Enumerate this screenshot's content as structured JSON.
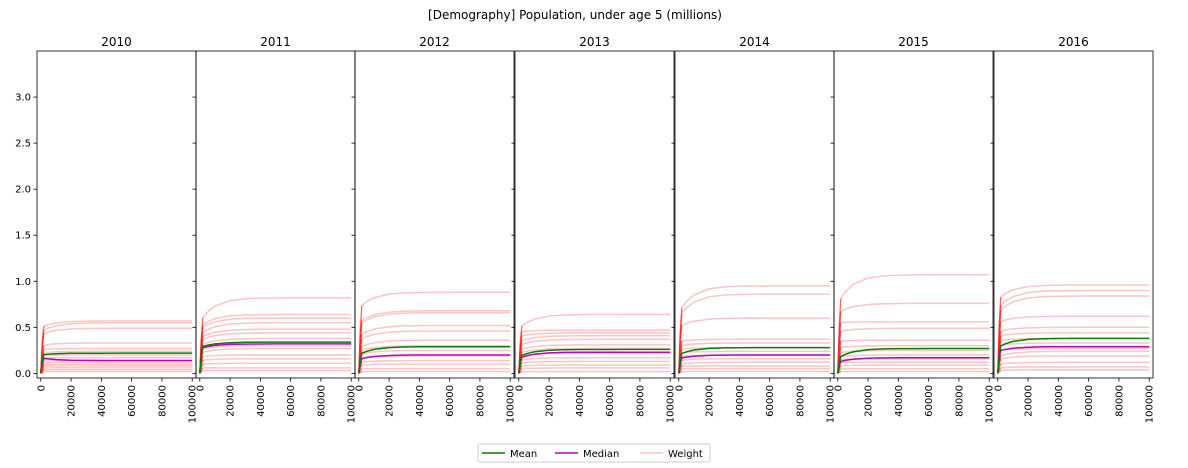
{
  "chart_data": {
    "type": "line",
    "title": "[Demography] Population, under age 5 (millions)",
    "xlabel": "",
    "ylabel": "",
    "xlim": [
      -2500,
      102500
    ],
    "ylim": [
      -0.05,
      3.5
    ],
    "x_ticks": [
      0,
      20000,
      40000,
      60000,
      80000,
      100000
    ],
    "x_tick_labels": [
      "0",
      "20000",
      "40000",
      "60000",
      "80000",
      "100000"
    ],
    "y_ticks": [
      0.0,
      0.5,
      1.0,
      1.5,
      2.0,
      2.5,
      3.0
    ],
    "y_tick_labels": [
      "0.0",
      "0.5",
      "1.0",
      "1.5",
      "2.0",
      "2.5",
      "3.0"
    ],
    "grid": false,
    "legend": {
      "placement": "bottom-center",
      "entries": [
        {
          "name": "Mean",
          "color": "#008000"
        },
        {
          "name": "Median",
          "color": "#bf00bf"
        },
        {
          "name": "Weight",
          "color": "#ffc0c0"
        }
      ]
    },
    "x": [
      0,
      1000,
      2000,
      5000,
      10000,
      20000,
      30000,
      40000,
      50000,
      60000,
      70000,
      80000,
      90000,
      100000
    ],
    "colors": {
      "mean": "#008000",
      "median": "#bf00bf",
      "weight": "#ffb0b0",
      "weight_early": "#ff2020"
    },
    "panels": [
      {
        "title": "2010",
        "mean_start": 0.2,
        "mean_final": 0.22,
        "median_start": 0.17,
        "median_final": 0.14,
        "weights": [
          {
            "start": 0.5,
            "final": 0.57
          },
          {
            "start": 0.45,
            "final": 0.55
          },
          {
            "start": 0.42,
            "final": 0.49
          },
          {
            "start": 0.3,
            "final": 0.33
          },
          {
            "start": 0.26,
            "final": 0.27
          },
          {
            "start": 0.22,
            "final": 0.24
          },
          {
            "start": 0.2,
            "final": 0.2
          },
          {
            "start": 0.17,
            "final": 0.17
          },
          {
            "start": 0.15,
            "final": 0.14
          },
          {
            "start": 0.12,
            "final": 0.12
          },
          {
            "start": 0.1,
            "final": 0.1
          },
          {
            "start": 0.08,
            "final": 0.08
          },
          {
            "start": 0.06,
            "final": 0.06
          },
          {
            "start": 0.04,
            "final": 0.04
          },
          {
            "start": 0.02,
            "final": 0.02
          }
        ]
      },
      {
        "title": "2011",
        "mean_start": 0.28,
        "mean_final": 0.34,
        "median_start": 0.27,
        "median_final": 0.32,
        "weights": [
          {
            "start": 0.55,
            "final": 0.82
          },
          {
            "start": 0.5,
            "final": 0.64
          },
          {
            "start": 0.48,
            "final": 0.6
          },
          {
            "start": 0.42,
            "final": 0.55
          },
          {
            "start": 0.38,
            "final": 0.48
          },
          {
            "start": 0.35,
            "final": 0.44
          },
          {
            "start": 0.3,
            "final": 0.38
          },
          {
            "start": 0.26,
            "final": 0.3
          },
          {
            "start": 0.22,
            "final": 0.27
          },
          {
            "start": 0.18,
            "final": 0.2
          },
          {
            "start": 0.14,
            "final": 0.16
          },
          {
            "start": 0.1,
            "final": 0.11
          },
          {
            "start": 0.06,
            "final": 0.06
          },
          {
            "start": 0.03,
            "final": 0.03
          }
        ]
      },
      {
        "title": "2012",
        "mean_start": 0.2,
        "mean_final": 0.29,
        "median_start": 0.15,
        "median_final": 0.2,
        "weights": [
          {
            "start": 0.7,
            "final": 0.88
          },
          {
            "start": 0.55,
            "final": 0.68
          },
          {
            "start": 0.52,
            "final": 0.66
          },
          {
            "start": 0.4,
            "final": 0.52
          },
          {
            "start": 0.35,
            "final": 0.46
          },
          {
            "start": 0.28,
            "final": 0.36
          },
          {
            "start": 0.24,
            "final": 0.3
          },
          {
            "start": 0.2,
            "final": 0.25
          },
          {
            "start": 0.16,
            "final": 0.19
          },
          {
            "start": 0.12,
            "final": 0.14
          },
          {
            "start": 0.09,
            "final": 0.1
          },
          {
            "start": 0.05,
            "final": 0.05
          },
          {
            "start": 0.02,
            "final": 0.02
          }
        ]
      },
      {
        "title": "2013",
        "mean_start": 0.18,
        "mean_final": 0.26,
        "median_start": 0.16,
        "median_final": 0.23,
        "weights": [
          {
            "start": 0.48,
            "final": 0.64
          },
          {
            "start": 0.45,
            "final": 0.47
          },
          {
            "start": 0.4,
            "final": 0.44
          },
          {
            "start": 0.34,
            "final": 0.41
          },
          {
            "start": 0.3,
            "final": 0.37
          },
          {
            "start": 0.25,
            "final": 0.31
          },
          {
            "start": 0.22,
            "final": 0.27
          },
          {
            "start": 0.18,
            "final": 0.22
          },
          {
            "start": 0.14,
            "final": 0.17
          },
          {
            "start": 0.11,
            "final": 0.13
          },
          {
            "start": 0.08,
            "final": 0.09
          },
          {
            "start": 0.05,
            "final": 0.06
          },
          {
            "start": 0.02,
            "final": 0.02
          }
        ]
      },
      {
        "title": "2014",
        "mean_start": 0.2,
        "mean_final": 0.28,
        "median_start": 0.16,
        "median_final": 0.2,
        "weights": [
          {
            "start": 0.65,
            "final": 0.95
          },
          {
            "start": 0.6,
            "final": 0.86
          },
          {
            "start": 0.5,
            "final": 0.6
          },
          {
            "start": 0.35,
            "final": 0.37
          },
          {
            "start": 0.3,
            "final": 0.33
          },
          {
            "start": 0.26,
            "final": 0.28
          },
          {
            "start": 0.22,
            "final": 0.24
          },
          {
            "start": 0.18,
            "final": 0.2
          },
          {
            "start": 0.14,
            "final": 0.16
          },
          {
            "start": 0.1,
            "final": 0.12
          },
          {
            "start": 0.08,
            "final": 0.08
          },
          {
            "start": 0.05,
            "final": 0.05
          },
          {
            "start": 0.02,
            "final": 0.02
          }
        ]
      },
      {
        "title": "2015",
        "mean_start": 0.16,
        "mean_final": 0.27,
        "median_start": 0.12,
        "median_final": 0.17,
        "weights": [
          {
            "start": 0.75,
            "final": 1.07
          },
          {
            "start": 0.65,
            "final": 0.76
          },
          {
            "start": 0.55,
            "final": 0.56
          },
          {
            "start": 0.45,
            "final": 0.49
          },
          {
            "start": 0.35,
            "final": 0.36
          },
          {
            "start": 0.28,
            "final": 0.3
          },
          {
            "start": 0.22,
            "final": 0.25
          },
          {
            "start": 0.18,
            "final": 0.2
          },
          {
            "start": 0.15,
            "final": 0.16
          },
          {
            "start": 0.12,
            "final": 0.12
          },
          {
            "start": 0.08,
            "final": 0.09
          },
          {
            "start": 0.05,
            "final": 0.05
          },
          {
            "start": 0.02,
            "final": 0.02
          }
        ]
      },
      {
        "title": "2016",
        "mean_start": 0.28,
        "mean_final": 0.38,
        "median_start": 0.24,
        "median_final": 0.29,
        "weights": [
          {
            "start": 0.8,
            "final": 0.96
          },
          {
            "start": 0.7,
            "final": 0.9
          },
          {
            "start": 0.65,
            "final": 0.84
          },
          {
            "start": 0.55,
            "final": 0.62
          },
          {
            "start": 0.45,
            "final": 0.5
          },
          {
            "start": 0.4,
            "final": 0.44
          },
          {
            "start": 0.35,
            "final": 0.38
          },
          {
            "start": 0.3,
            "final": 0.33
          },
          {
            "start": 0.25,
            "final": 0.27
          },
          {
            "start": 0.18,
            "final": 0.24
          },
          {
            "start": 0.15,
            "final": 0.19
          },
          {
            "start": 0.1,
            "final": 0.12
          },
          {
            "start": 0.06,
            "final": 0.07
          },
          {
            "start": 0.03,
            "final": 0.04
          }
        ]
      }
    ]
  }
}
